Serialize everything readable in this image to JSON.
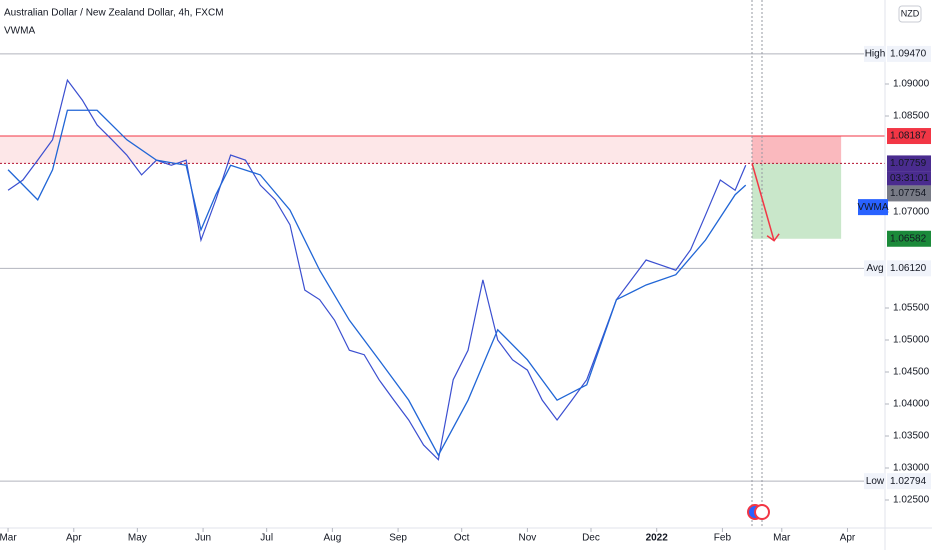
{
  "chart_data": {
    "type": "line",
    "title": "Australian Dollar / New Zealand Dollar, 4h, FXCM",
    "indicator": "VWMA",
    "currency": "NZD",
    "x": [
      0,
      7,
      14,
      21,
      28,
      35,
      42,
      49,
      56,
      63,
      70,
      77,
      84,
      91,
      98,
      105,
      112,
      119,
      126,
      133,
      140,
      147,
      154,
      161,
      168,
      175,
      182,
      189,
      196,
      203,
      210,
      217,
      224,
      231,
      238,
      245,
      252,
      259,
      266,
      273,
      280,
      287,
      294,
      301,
      308,
      315,
      322,
      329,
      336,
      343,
      348
    ],
    "values": [
      1.0734,
      1.075,
      1.0781,
      1.0813,
      1.0906,
      1.0875,
      1.0836,
      1.0813,
      1.0789,
      1.0758,
      1.0781,
      1.0773,
      1.0781,
      1.0656,
      1.0719,
      1.0789,
      1.0781,
      1.0742,
      1.0719,
      1.068,
      1.0578,
      1.0563,
      1.0531,
      1.0484,
      1.0477,
      1.0438,
      1.0406,
      1.0375,
      1.0336,
      1.0313,
      1.0438,
      1.0484,
      1.0594,
      1.05,
      1.0469,
      1.0453,
      1.0406,
      1.0375,
      1.0406,
      1.0438,
      1.05,
      1.0563,
      1.0594,
      1.0625,
      1.0617,
      1.0609,
      1.0641,
      1.0695,
      1.075,
      1.0734,
      1.0773
    ],
    "color": "#3b4fd0",
    "vwma": {
      "name": "VWMA",
      "color": "#2166d6",
      "x": [
        0,
        14,
        21,
        28,
        42,
        56,
        70,
        84,
        91,
        98,
        105,
        119,
        133,
        147,
        161,
        175,
        189,
        203,
        217,
        231,
        245,
        259,
        273,
        287,
        301,
        315,
        329,
        343,
        348
      ],
      "values": [
        1.0766,
        1.0719,
        1.0766,
        1.0859,
        1.0859,
        1.0813,
        1.0781,
        1.0773,
        1.0672,
        1.0727,
        1.0773,
        1.0758,
        1.0703,
        1.0609,
        1.0531,
        1.0469,
        1.0406,
        1.032,
        1.0406,
        1.0516,
        1.0469,
        1.0406,
        1.043,
        1.0563,
        1.0586,
        1.0602,
        1.0656,
        1.0727,
        1.0742
      ]
    },
    "xlim": [
      -3.8,
      413.7
    ],
    "ylim": [
      1.020625,
      1.103125
    ],
    "xticks": [
      {
        "value": 0,
        "label": "Mar"
      },
      {
        "value": 31,
        "label": "Apr"
      },
      {
        "value": 61,
        "label": "May"
      },
      {
        "value": 92,
        "label": "Jun"
      },
      {
        "value": 122,
        "label": "Jul"
      },
      {
        "value": 153,
        "label": "Aug"
      },
      {
        "value": 184,
        "label": "Sep"
      },
      {
        "value": 214,
        "label": "Oct"
      },
      {
        "value": 245,
        "label": "Nov"
      },
      {
        "value": 275,
        "label": "Dec"
      },
      {
        "value": 306,
        "label": "2022"
      },
      {
        "value": 337,
        "label": "Feb"
      },
      {
        "value": 365,
        "label": "Mar"
      },
      {
        "value": 396,
        "label": "Apr"
      }
    ],
    "yticks": [
      {
        "value": 1.025,
        "label": "1.02500"
      },
      {
        "value": 1.03,
        "label": "1.03000"
      },
      {
        "value": 1.035,
        "label": "1.03500"
      },
      {
        "value": 1.04,
        "label": "1.04000"
      },
      {
        "value": 1.045,
        "label": "1.04500"
      },
      {
        "value": 1.05,
        "label": "1.05000"
      },
      {
        "value": 1.055,
        "label": "1.05500"
      },
      {
        "value": 1.07,
        "label": "1.07000"
      },
      {
        "value": 1.085,
        "label": "1.08500"
      },
      {
        "value": 1.09,
        "label": "1.09000"
      }
    ],
    "levels": [
      {
        "name": "High",
        "value": 1.0947,
        "label": "1.09470"
      },
      {
        "name": "Avg",
        "value": 1.0612,
        "label": "1.06120"
      },
      {
        "name": "Low",
        "value": 1.02794,
        "label": "1.02794"
      }
    ],
    "position": {
      "stop": {
        "value": 1.08187,
        "label": "1.08187"
      },
      "entry": {
        "value": 1.07759,
        "label": "1.07759"
      },
      "target": {
        "value": 1.06582,
        "label": "1.06582"
      },
      "start": 351,
      "end": 393
    },
    "last_price": {
      "value": 1.07754,
      "label": "1.07754"
    },
    "countdown": "03:31:01"
  }
}
